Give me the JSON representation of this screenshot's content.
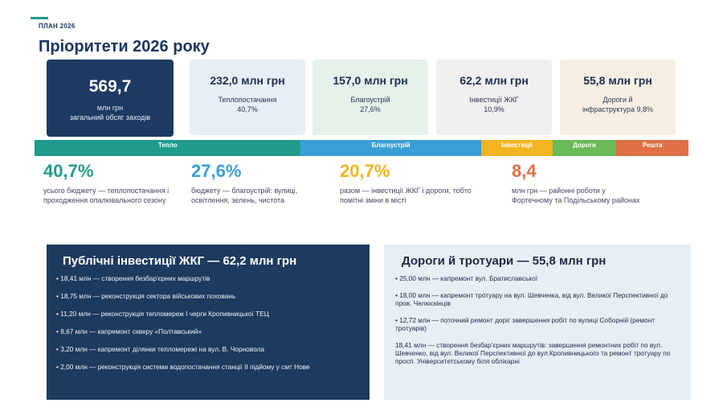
{
  "header": {
    "plan_label": "ПЛАН 2026",
    "title": "Пріоритети 2026 року"
  },
  "cards": [
    {
      "value": "569,7",
      "line1": "млн грн",
      "line2": "загальний обсяг заходів"
    },
    {
      "value": "232,0 млн грн",
      "line1": "Теплопостачання",
      "line2": "40,7%"
    },
    {
      "value": "157,0 млн грн",
      "line1": "Благоустрій",
      "line2": "27,6%"
    },
    {
      "value": "62,2 млн грн",
      "line1": "Інвестиції ЖКГ",
      "line2": "10,9%"
    },
    {
      "value": "55,8 млн грн",
      "line1": "Дороги й",
      "line2": "інфраструктура 9,8%"
    }
  ],
  "budget_bar": [
    {
      "label": "Тепло",
      "share": 40.7,
      "color": "#1f9b8c"
    },
    {
      "label": "Благоустрій",
      "share": 27.6,
      "color": "#3a9fd6"
    },
    {
      "label": "Інвестиції",
      "share": 10.9,
      "color": "#f2b521"
    },
    {
      "label": "Дороги",
      "share": 9.8,
      "color": "#6aba57"
    },
    {
      "label": "Решта",
      "share": 11.0,
      "color": "#e07046"
    }
  ],
  "stats": [
    {
      "value": "40,7%",
      "desc": "усього бюджету — теплопостачання і проходження опалювального сезону",
      "color": "#1f9b8c"
    },
    {
      "value": "27,6%",
      "desc": "бюджету — благоустрій: вулиці, освітлення, зелень, чистота",
      "color": "#3a9fd6"
    },
    {
      "value": "20,7%",
      "desc": "разом — інвестиції ЖКГ і дороги, тобто помітні зміни в місті",
      "color": "#f2b521"
    },
    {
      "value": "8,4",
      "desc": "млн грн — районні роботи у Фортечному та Подільському районах",
      "color": "#e07046"
    }
  ],
  "left_panel": {
    "title": "Публічні інвестиції ЖКГ — 62,2 млн грн",
    "items": [
      "• 18,41 млн — створення безбар'єрних маршрутів",
      "• 18,75 млн — реконструкція сектора військових поховань",
      "• 11,20 млн — реконструкція тепломереж І черги Кропивницької ТЕЦ",
      "• 8,67 млн — капремонт скверу «Полтавський»",
      "• 3,20 млн — капремонт ділянки тепломережі на  вул. В. Чорновола",
      "• 2,00 млн — реконструкція системи водопостачання станції ІІ підйому у смт Нове"
    ]
  },
  "right_panel": {
    "title": "Дороги й тротуари — 55,8 млн грн",
    "items": [
      "• 25,00 млн — капремонт вул. Братиславської",
      "• 18,00 млн — капремонт тротуару на вул. Шевченка, від вул. Великої Перспективної до пров. Челюскінців",
      "• 12,72 млн — поточний ремонт доріг завершення робіт по вулиці Соборній (ремонт тротуарів)",
      "18,41 млн — створення безбар'єрних маршрутів: завершення ремонтних робіт по вул. Шевченко, від вул. Великої Перспективної до вул.Кропивницького та ремонт тротуару по просп. Університетському біля облікарні"
    ]
  }
}
